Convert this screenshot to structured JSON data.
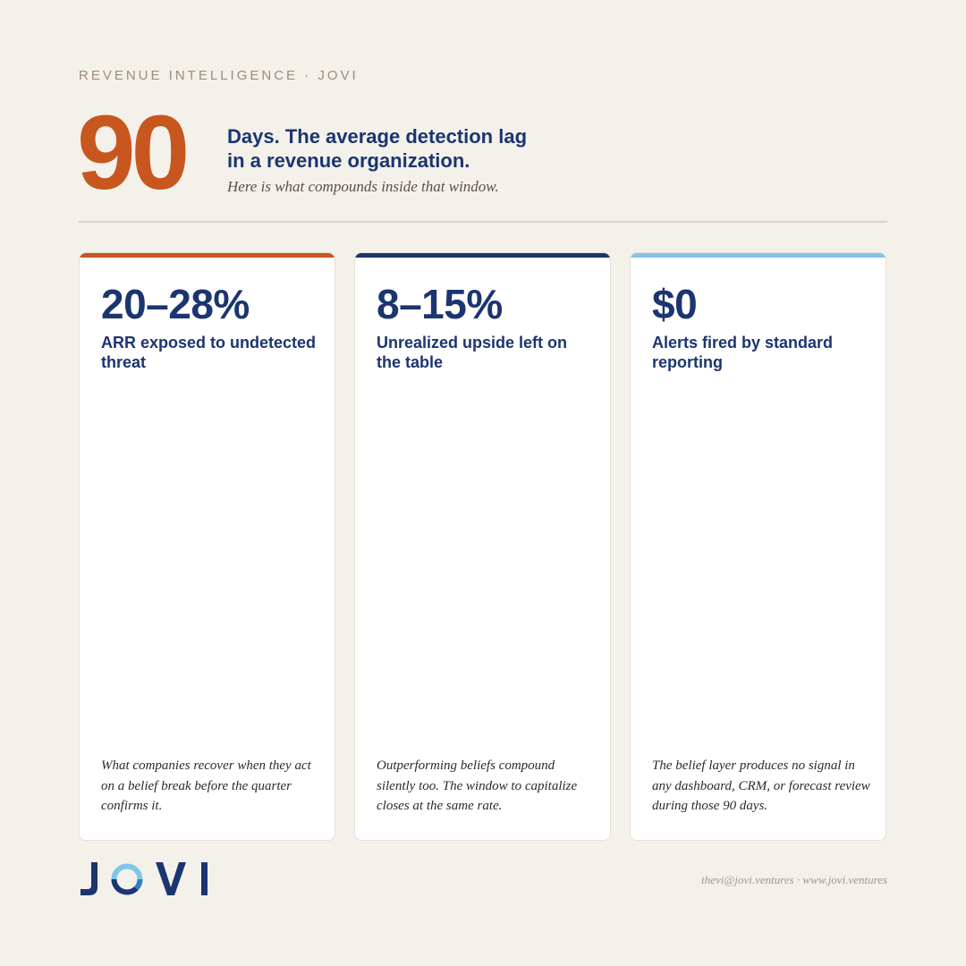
{
  "header": {
    "eyebrow": "REVENUE INTELLIGENCE · JOVI",
    "hero_number": "90",
    "headline": "Days. The average detection lag\nin a revenue organization.",
    "subline": "Here is what compounds inside that window."
  },
  "colors": {
    "orange": "#c8561f",
    "navy": "#1b3570",
    "light_blue": "#7fc7e6",
    "background": "#f4f1ea"
  },
  "cards": [
    {
      "accent": "#c8561f",
      "stat": "20–28%",
      "label": "ARR exposed to undetected threat",
      "body": "What companies recover when they act on a belief break before the quarter confirms it."
    },
    {
      "accent": "#1b3570",
      "stat": "8–15%",
      "label": "Unrealized upside left on the table",
      "body": "Outperforming beliefs compound silently too. The window to capitalize closes at the same rate."
    },
    {
      "accent": "#7fc7e6",
      "stat": "$0",
      "label": "Alerts fired by standard reporting",
      "body": "The belief layer produces no signal in any dashboard, CRM, or forecast review during those 90 days."
    }
  ],
  "footer": {
    "logo_text": "JOVI",
    "logo_icon": "circular-o-ring-icon",
    "contact": "thevi@jovi.ventures · www.jovi.ventures"
  }
}
